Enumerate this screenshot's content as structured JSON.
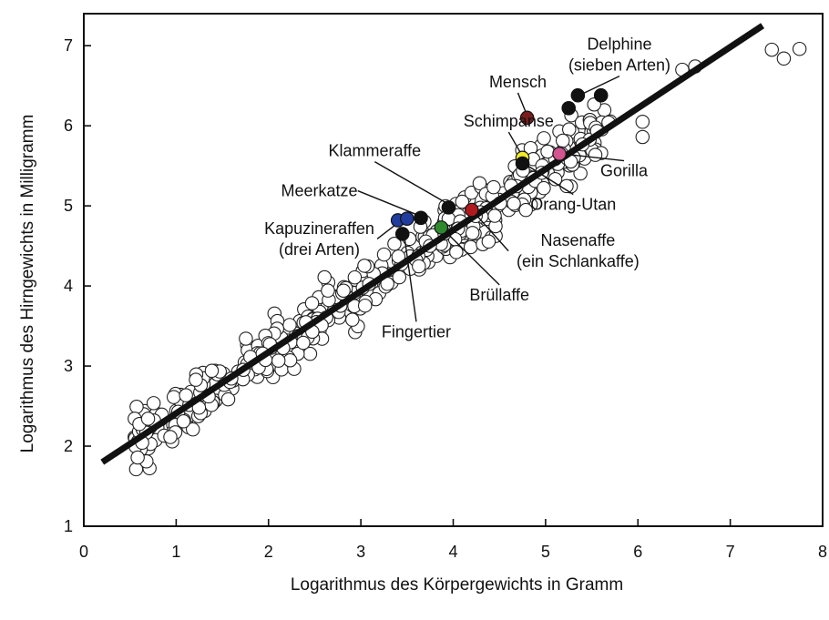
{
  "chart_data": {
    "type": "scatter",
    "title": "",
    "xlabel": "Logarithmus des Körpergewichts in Gramm",
    "ylabel": "Logarithmus des Hirngewichts in Milligramm",
    "xlim": [
      0,
      8
    ],
    "ylim": [
      1,
      7.4
    ],
    "x_ticks": [
      0,
      1,
      2,
      3,
      4,
      5,
      6,
      7,
      8
    ],
    "y_ticks": [
      1,
      2,
      3,
      4,
      5,
      6,
      7
    ],
    "grid": false,
    "regression_line": {
      "from": [
        0.2,
        1.8
      ],
      "to": [
        7.35,
        7.25
      ]
    },
    "highlighted": [
      {
        "label": "Delphine\n(sieben Arten)",
        "points": [
          [
            5.35,
            6.38
          ],
          [
            5.6,
            6.38
          ],
          [
            5.25,
            6.22
          ]
        ],
        "color": "#111111",
        "label_x": 5.8,
        "label_y": 6.95,
        "anchor": [
          5.4,
          6.4
        ]
      },
      {
        "label": "Mensch",
        "points": [
          [
            4.8,
            6.1
          ]
        ],
        "color": "#7a1d1d",
        "label_x": 4.7,
        "label_y": 6.48,
        "anchor": [
          4.8,
          6.13
        ]
      },
      {
        "label": "Schimpanse",
        "points": [
          [
            4.75,
            5.6
          ]
        ],
        "color": "#f2e92a",
        "label_x": 4.6,
        "label_y": 5.99,
        "anchor": [
          4.75,
          5.62
        ]
      },
      {
        "label": "Gorilla",
        "points": [
          [
            5.15,
            5.65
          ]
        ],
        "color": "#d2558f",
        "label_x": 5.85,
        "label_y": 5.37,
        "anchor": [
          5.18,
          5.65
        ]
      },
      {
        "label": "Orang-Utan",
        "points": [
          [
            4.75,
            5.53
          ]
        ],
        "color": "#111111",
        "label_x": 5.3,
        "label_y": 4.95,
        "anchor": [
          4.78,
          5.52
        ]
      },
      {
        "label": "Klammeraffe",
        "points": [
          [
            3.95,
            4.98
          ]
        ],
        "color": "#111111",
        "label_x": 3.15,
        "label_y": 5.62,
        "anchor": [
          3.95,
          5.02
        ]
      },
      {
        "label": "Meerkatze",
        "points": [
          [
            3.65,
            4.85
          ]
        ],
        "color": "#111111",
        "label_x": 2.55,
        "label_y": 5.12,
        "anchor": [
          3.65,
          4.87
        ]
      },
      {
        "label": "Kapuzineraffen\n(drei Arten)",
        "points": [
          [
            3.4,
            4.82
          ],
          [
            3.5,
            4.84
          ]
        ],
        "color": "#1f3c9e",
        "label_x": 2.55,
        "label_y": 4.65,
        "anchor": [
          3.45,
          4.83
        ]
      },
      {
        "label": "Nasenaffe\n(ein Schlankaffe)",
        "points": [
          [
            4.2,
            4.95
          ]
        ],
        "color": "#b0191e",
        "label_x": 5.35,
        "label_y": 4.5,
        "anchor": [
          4.2,
          4.95
        ]
      },
      {
        "label": "Brüllaffe",
        "points": [
          [
            3.87,
            4.73
          ]
        ],
        "color": "#2f8a2f",
        "label_x": 4.5,
        "label_y": 3.82,
        "anchor": [
          3.88,
          4.72
        ]
      },
      {
        "label": "Fingertier",
        "points": [
          [
            3.45,
            4.65
          ]
        ],
        "color": "#111111",
        "label_x": 3.6,
        "label_y": 3.36,
        "anchor": [
          3.47,
          4.63
        ]
      }
    ]
  }
}
